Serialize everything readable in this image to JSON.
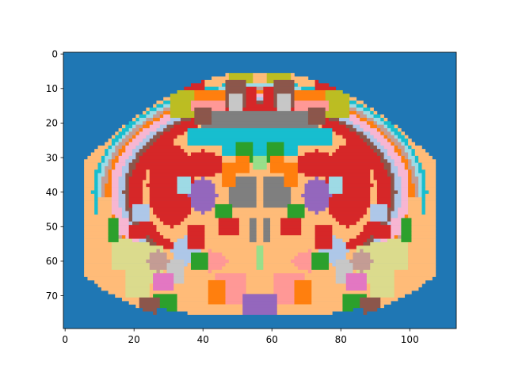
{
  "chart_data": {
    "type": "heatmap",
    "title": "",
    "xlabel": "",
    "ylabel": "",
    "xlim": [
      -0.5,
      113.5
    ],
    "ylim": [
      79.5,
      -0.5
    ],
    "y_inverted": true,
    "grid": false,
    "x_ticks": [
      0,
      20,
      40,
      60,
      80,
      100
    ],
    "x_tick_labels": [
      "0",
      "20",
      "40",
      "60",
      "80",
      "100"
    ],
    "y_ticks": [
      0,
      10,
      20,
      30,
      40,
      50,
      60,
      70
    ],
    "y_tick_labels": [
      "0",
      "10",
      "20",
      "30",
      "40",
      "50",
      "60",
      "70"
    ],
    "grid_shape": [
      80,
      114
    ],
    "colormap": "tab20",
    "background_color": "#1f77b4",
    "symmetry": "left-right mirrored about x = 56.5",
    "region_colors": {
      "tan": "#c49c94",
      "light_orange": "#ffbb78",
      "orange": "#ff7f0e",
      "red": "#d62728",
      "pink": "#f7b6d2",
      "light_pink": "#ff9896",
      "light_blue": "#aec7e8",
      "cyan": "#17becf",
      "pale_cyan": "#9edae5",
      "olive": "#bcbd22",
      "khaki": "#dbdb8d",
      "gray": "#7f7f7f",
      "light_gray": "#c7c7c7",
      "purple": "#9467bd",
      "lavender": "#c5b0d5",
      "green": "#2ca02c",
      "light_green": "#98df8a",
      "brown": "#8c564b",
      "magenta": "#e377c2"
    }
  }
}
